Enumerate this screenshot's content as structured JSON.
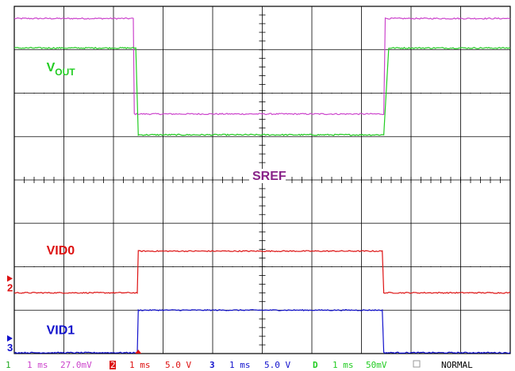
{
  "chart_data": {
    "type": "line",
    "title": "",
    "xlabel": "",
    "ylabel": "",
    "grid": true,
    "grid_divisions": {
      "x": 10,
      "y": 8
    },
    "x_unit": "ms",
    "xlim": [
      0,
      10
    ],
    "ylim": [
      0,
      8
    ],
    "series": [
      {
        "id": "ch4",
        "name": "VOUT",
        "color": "#cc44cc",
        "noise": 0.03,
        "x": [
          0,
          2.4,
          2.42,
          7.45,
          7.48,
          10
        ],
        "y": [
          7.72,
          7.72,
          5.52,
          5.52,
          7.72,
          7.72
        ]
      },
      {
        "id": "ch4b",
        "name": "VOUT",
        "color": "#22cc22",
        "noise": 0.03,
        "x": [
          0,
          2.45,
          2.5,
          7.45,
          7.55,
          10
        ],
        "y": [
          7.04,
          7.04,
          5.04,
          5.04,
          7.04,
          7.04
        ]
      },
      {
        "id": "ch2",
        "name": "VID0",
        "color": "#dd1111",
        "noise": 0.025,
        "x": [
          0,
          2.48,
          2.5,
          7.42,
          7.45,
          10
        ],
        "y": [
          1.4,
          1.4,
          2.36,
          2.36,
          1.4,
          1.4
        ]
      },
      {
        "id": "ch3",
        "name": "VID1",
        "color": "#1111cc",
        "noise": 0.025,
        "x": [
          0,
          2.48,
          2.5,
          7.42,
          7.45,
          10
        ],
        "y": [
          0.02,
          0.02,
          1.0,
          1.0,
          0.02,
          0.02
        ]
      }
    ],
    "annotations": [
      {
        "text": "V",
        "sub": "OUT",
        "color": "#22cc22",
        "x": 0.65,
        "y": 6.5
      },
      {
        "text": "SREF",
        "color": "#882288",
        "x": 4.8,
        "y": 4.0
      },
      {
        "text": "VID0",
        "color": "#dd1111",
        "x": 0.65,
        "y": 2.28
      },
      {
        "text": "VID1",
        "color": "#1111cc",
        "x": 0.65,
        "y": 0.45
      }
    ],
    "markers": [
      {
        "text": "2",
        "color": "#dd1111",
        "y": 1.4
      },
      {
        "text": "3",
        "color": "#1111cc",
        "y": 0.02
      }
    ]
  },
  "status_bar": {
    "ch1": {
      "num": "1",
      "time": "1 ms",
      "value": "27.0mV"
    },
    "ch2": {
      "num": "2",
      "time": "1 ms",
      "value": "5.0 V"
    },
    "ch3": {
      "num": "3",
      "time": "1 ms",
      "value": "5.0 V"
    },
    "ch4": {
      "num": "D",
      "time": "1 ms",
      "value": "50mV"
    },
    "mode": "NORMAL"
  }
}
